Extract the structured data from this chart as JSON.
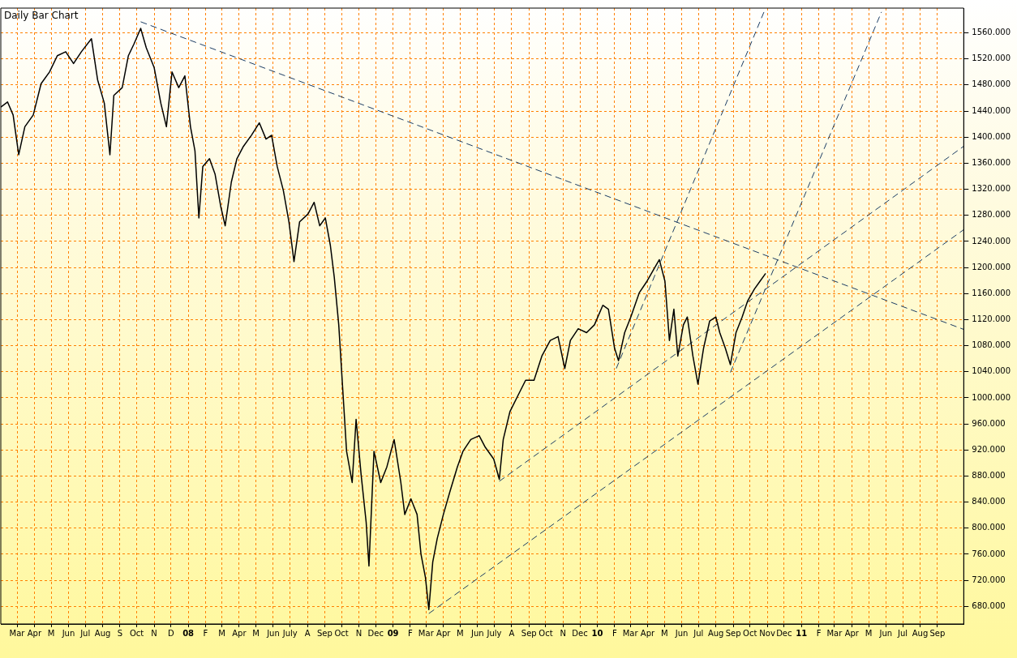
{
  "chart_data": {
    "type": "line",
    "title": "Daily Bar Chart",
    "xlim": [
      "2007-01-31",
      "2011-10-18"
    ],
    "xticks": [
      {
        "value": "2007-03",
        "label": "Mar"
      },
      {
        "value": "2007-04",
        "label": "Apr"
      },
      {
        "value": "2007-05",
        "label": "M"
      },
      {
        "value": "2007-06",
        "label": "Jun"
      },
      {
        "value": "2007-07",
        "label": "Jul"
      },
      {
        "value": "2007-08",
        "label": "Aug"
      },
      {
        "value": "2007-09",
        "label": "S"
      },
      {
        "value": "2007-10",
        "label": "Oct"
      },
      {
        "value": "2007-11",
        "label": "N"
      },
      {
        "value": "2007-12",
        "label": "D"
      },
      {
        "value": "2008-01",
        "label": "08"
      },
      {
        "value": "2008-02",
        "label": "F"
      },
      {
        "value": "2008-03",
        "label": "M"
      },
      {
        "value": "2008-04",
        "label": "Apr"
      },
      {
        "value": "2008-05",
        "label": "M"
      },
      {
        "value": "2008-06",
        "label": "Jun"
      },
      {
        "value": "2008-07",
        "label": "July"
      },
      {
        "value": "2008-08",
        "label": "A"
      },
      {
        "value": "2008-09",
        "label": "Sep"
      },
      {
        "value": "2008-10",
        "label": "Oct"
      },
      {
        "value": "2008-11",
        "label": "N"
      },
      {
        "value": "2008-12",
        "label": "Dec"
      },
      {
        "value": "2009-01",
        "label": "09"
      },
      {
        "value": "2009-02",
        "label": "F"
      },
      {
        "value": "2009-03",
        "label": "Mar"
      },
      {
        "value": "2009-04",
        "label": "Apr"
      },
      {
        "value": "2009-05",
        "label": "M"
      },
      {
        "value": "2009-06",
        "label": "Jun"
      },
      {
        "value": "2009-07",
        "label": "July"
      },
      {
        "value": "2009-08",
        "label": "A"
      },
      {
        "value": "2009-09",
        "label": "Sep"
      },
      {
        "value": "2009-10",
        "label": "Oct"
      },
      {
        "value": "2009-11",
        "label": "N"
      },
      {
        "value": "2009-12",
        "label": "Dec"
      },
      {
        "value": "2010-01",
        "label": "10"
      },
      {
        "value": "2010-02",
        "label": "F"
      },
      {
        "value": "2010-03",
        "label": "Mar"
      },
      {
        "value": "2010-04",
        "label": "Apr"
      },
      {
        "value": "2010-05",
        "label": "M"
      },
      {
        "value": "2010-06",
        "label": "Jun"
      },
      {
        "value": "2010-07",
        "label": "Jul"
      },
      {
        "value": "2010-08",
        "label": "Aug"
      },
      {
        "value": "2010-09",
        "label": "Sep"
      },
      {
        "value": "2010-10",
        "label": "Oct"
      },
      {
        "value": "2010-11",
        "label": "Nov"
      },
      {
        "value": "2010-12",
        "label": "Dec"
      },
      {
        "value": "2011-01",
        "label": "11"
      },
      {
        "value": "2011-02",
        "label": "F"
      },
      {
        "value": "2011-03",
        "label": "Mar"
      },
      {
        "value": "2011-04",
        "label": "Apr"
      },
      {
        "value": "2011-05",
        "label": "M"
      },
      {
        "value": "2011-06",
        "label": "Jun"
      },
      {
        "value": "2011-07",
        "label": "Jul"
      },
      {
        "value": "2011-08",
        "label": "Aug"
      },
      {
        "value": "2011-09",
        "label": "Sep"
      }
    ],
    "ylim": [
      653,
      1598
    ],
    "yticks": [
      {
        "value": 680,
        "label": "680.000"
      },
      {
        "value": 720,
        "label": "720.000"
      },
      {
        "value": 760,
        "label": "760.000"
      },
      {
        "value": 800,
        "label": "800.000"
      },
      {
        "value": 840,
        "label": "840.000"
      },
      {
        "value": 880,
        "label": "880.000"
      },
      {
        "value": 920,
        "label": "920.000"
      },
      {
        "value": 960,
        "label": "960.000"
      },
      {
        "value": 1000,
        "label": "1000.000"
      },
      {
        "value": 1040,
        "label": "1040.000"
      },
      {
        "value": 1080,
        "label": "1080.000"
      },
      {
        "value": 1120,
        "label": "1120.000"
      },
      {
        "value": 1160,
        "label": "1160.000"
      },
      {
        "value": 1200,
        "label": "1200.000"
      },
      {
        "value": 1240,
        "label": "1240.000"
      },
      {
        "value": 1280,
        "label": "1280.000"
      },
      {
        "value": 1320,
        "label": "1320.000"
      },
      {
        "value": 1360,
        "label": "1360.000"
      },
      {
        "value": 1400,
        "label": "1400.000"
      },
      {
        "value": 1440,
        "label": "1440.000"
      },
      {
        "value": 1480,
        "label": "1480.000"
      },
      {
        "value": 1520,
        "label": "1520.000"
      },
      {
        "value": 1560,
        "label": "1560.000"
      }
    ],
    "grid": true,
    "legend": false,
    "marker": "none",
    "series": [
      {
        "color": "#000000",
        "x": [
          "2007-01-31",
          "2007-02-12",
          "2007-02-22",
          "2007-03-04",
          "2007-03-15",
          "2007-03-30",
          "2007-04-13",
          "2007-04-28",
          "2007-05-12",
          "2007-05-27",
          "2007-06-10",
          "2007-06-24",
          "2007-07-12",
          "2007-07-23",
          "2007-08-04",
          "2007-08-14",
          "2007-08-21",
          "2007-09-05",
          "2007-09-16",
          "2007-09-26",
          "2007-10-08",
          "2007-10-18",
          "2007-11-01",
          "2007-11-13",
          "2007-11-23",
          "2007-12-03",
          "2007-12-15",
          "2007-12-26",
          "2008-01-05",
          "2008-01-13",
          "2008-01-20",
          "2008-01-27",
          "2008-02-08",
          "2008-02-18",
          "2008-02-28",
          "2008-03-07",
          "2008-03-18",
          "2008-03-28",
          "2008-04-08",
          "2008-04-23",
          "2008-05-07",
          "2008-05-19",
          "2008-05-29",
          "2008-06-08",
          "2008-06-19",
          "2008-06-29",
          "2008-07-08",
          "2008-07-18",
          "2008-08-02",
          "2008-08-13",
          "2008-08-23",
          "2008-09-02",
          "2008-09-11",
          "2008-09-18",
          "2008-09-26",
          "2008-10-03",
          "2008-10-10",
          "2008-10-20",
          "2008-10-27",
          "2008-11-05",
          "2008-11-14",
          "2008-11-19",
          "2008-11-28",
          "2008-12-10",
          "2008-12-21",
          "2009-01-03",
          "2009-01-15",
          "2009-01-22",
          "2009-02-02",
          "2009-02-13",
          "2009-02-20",
          "2009-02-28",
          "2009-03-06",
          "2009-03-13",
          "2009-03-21",
          "2009-04-01",
          "2009-04-13",
          "2009-04-26",
          "2009-05-06",
          "2009-05-20",
          "2009-06-04",
          "2009-06-15",
          "2009-06-30",
          "2009-07-10",
          "2009-07-17",
          "2009-07-29",
          "2009-08-12",
          "2009-08-26",
          "2009-09-10",
          "2009-09-24",
          "2009-10-09",
          "2009-10-23",
          "2009-11-04",
          "2009-11-14",
          "2009-11-28",
          "2009-12-13",
          "2009-12-27",
          "2010-01-11",
          "2010-01-21",
          "2010-02-01",
          "2010-02-08",
          "2010-02-19",
          "2010-03-02",
          "2010-03-17",
          "2010-03-31",
          "2010-04-12",
          "2010-04-22",
          "2010-05-02",
          "2010-05-10",
          "2010-05-18",
          "2010-05-25",
          "2010-06-04",
          "2010-06-11",
          "2010-06-21",
          "2010-06-30",
          "2010-07-10",
          "2010-07-21",
          "2010-08-01",
          "2010-08-08",
          "2010-08-18",
          "2010-08-27",
          "2010-09-06",
          "2010-09-17",
          "2010-09-27",
          "2010-10-09",
          "2010-10-19",
          "2010-10-29"
        ],
        "values": [
          1446,
          1454,
          1434,
          1373,
          1416,
          1434,
          1482,
          1500,
          1525,
          1531,
          1513,
          1531,
          1551,
          1488,
          1452,
          1373,
          1464,
          1476,
          1525,
          1543,
          1567,
          1537,
          1507,
          1452,
          1416,
          1500,
          1476,
          1494,
          1416,
          1379,
          1276,
          1355,
          1367,
          1343,
          1294,
          1264,
          1331,
          1367,
          1385,
          1403,
          1422,
          1397,
          1403,
          1355,
          1318,
          1270,
          1209,
          1270,
          1282,
          1300,
          1264,
          1276,
          1234,
          1185,
          1112,
          1015,
          918,
          870,
          967,
          882,
          809,
          742,
          918,
          870,
          894,
          936,
          870,
          821,
          845,
          821,
          760,
          724,
          675,
          748,
          784,
          821,
          857,
          894,
          918,
          936,
          942,
          924,
          906,
          875,
          936,
          979,
          1003,
          1027,
          1027,
          1064,
          1088,
          1094,
          1045,
          1088,
          1106,
          1100,
          1112,
          1142,
          1136,
          1076,
          1057,
          1100,
          1124,
          1161,
          1179,
          1197,
          1212,
          1179,
          1088,
          1136,
          1064,
          1112,
          1124,
          1064,
          1021,
          1076,
          1118,
          1124,
          1100,
          1076,
          1051,
          1100,
          1124,
          1149,
          1167,
          1179,
          1191
        ]
      },
      {
        "type": "line",
        "line_style": "dashed",
        "color": "#1c3d64",
        "x": [
          "2007-10-08",
          "2011-10-18"
        ],
        "values": [
          1577,
          1105
        ]
      },
      {
        "type": "line",
        "line_style": "dashed",
        "color": "#1c3d64",
        "x": [
          "2010-02-04",
          "2010-10-26"
        ],
        "values": [
          1045,
          1592
        ]
      },
      {
        "type": "line",
        "line_style": "dashed",
        "color": "#1c3d64",
        "x": [
          "2010-08-27",
          "2011-05-24"
        ],
        "values": [
          1039,
          1592
        ]
      },
      {
        "type": "line",
        "line_style": "dashed",
        "color": "#1c3d64",
        "x": [
          "2009-07-10",
          "2011-10-18"
        ],
        "values": [
          872,
          1386
        ]
      },
      {
        "type": "line",
        "line_style": "dashed",
        "color": "#1c3d64",
        "x": [
          "2009-03-06",
          "2011-10-18"
        ],
        "values": [
          669,
          1258
        ]
      }
    ]
  }
}
